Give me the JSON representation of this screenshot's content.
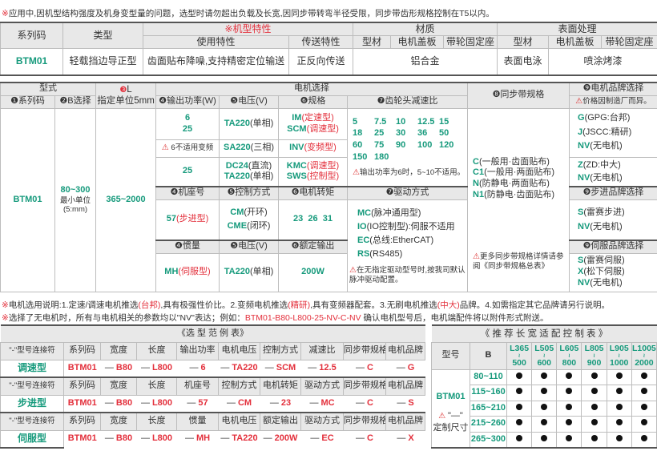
{
  "colors": {
    "accent_green": "#169a7c",
    "accent_red": "#e3303c",
    "header_gray": "#e8e8e8"
  },
  "top_note": {
    "mark": "※",
    "text": "应用中,因机型结构强度及机身变型量的问题，选型时请勿超出负载及长宽,因同步带转弯半径受限，同步带齿形规格控制在T5以内。"
  },
  "spec_table": {
    "h_series": "系列码",
    "h_type": "类型",
    "h_features": "※机型特性",
    "h_material": "材质",
    "h_surface": "表面处理",
    "h_use": "使用特性",
    "h_transfer": "传送特性",
    "h_profile": "型材",
    "h_cover": "电机盖板",
    "h_seat": "带轮固定座",
    "h_profile2": "型材",
    "h_cover2": "电机盖板",
    "h_seat2": "带轮固定座",
    "series": "BTM01",
    "type": "轻载挡边导正型",
    "use": "齿面贴布降噪,支持精密定位输送",
    "transfer": "正反向传送",
    "material": "铝合金",
    "surface_profile": "表面电泳",
    "surface_other": "喷涂烤漆"
  },
  "sel": {
    "h_model": "型式",
    "h_L_num": "❸",
    "h_L": "L",
    "h_L_sub": "指定单位5mm",
    "h_motor": "电机选择",
    "h_belt": "❽同步带规格",
    "h_brand": "❾电机品牌选择",
    "h_brand_note": "价格因制造厂而异。",
    "h_series": "❶系列码",
    "h_B": "❷B选择",
    "h_power": "❹输出功率(W)",
    "h_volt": "❺电压(V)",
    "h_spec": "❻规格",
    "h_gear": "❼齿轮头减速比",
    "series": "BTM01",
    "B": "80~300",
    "B_sub1": "最小单位",
    "B_sub2": "(5:mm)",
    "L": "365~2000",
    "p1a": "6",
    "p1b": "25",
    "v1": "TA220",
    "v1s": "(单相)",
    "s1a": "IM",
    "s1as": "(定速型)",
    "s1b": "SCM",
    "s1bs": "(调速型)",
    "p2": "6不适用变频",
    "v2": "SA220",
    "v2s": "(三相)",
    "s2": "INV",
    "s2s": "(变频型)",
    "p3": "25",
    "v3a": "DC24",
    "v3as": "(直流)",
    "v3b": "TA220",
    "v3bs": "(单相)",
    "s3a": "KMC",
    "s3as": "(调速型)",
    "s3b": "SWS",
    "s3bs": "(控制型)",
    "gear_ratios": [
      "5",
      "7.5",
      "10",
      "12.5",
      "15",
      "18",
      "25",
      "30",
      "36",
      "50",
      "60",
      "75",
      "90",
      "100",
      "120",
      "150",
      "180"
    ],
    "gear_note": "输出功率为6时，5~10不适用。",
    "belt": [
      {
        "c": "C",
        "d": "(一般用·齿面贴布)"
      },
      {
        "c": "C1",
        "d": "(一般用·两面贴布)"
      },
      {
        "c": "N",
        "d": "(防静电·两面贴布)"
      },
      {
        "c": "N1",
        "d": "(防静电·齿面贴布)"
      }
    ],
    "belt_note": "更多同步带规格详情请参阅《同步带规格总表》",
    "brand1": [
      {
        "c": "G",
        "d": "(GPG:台邦)"
      },
      {
        "c": "J",
        "d": "(JSCC:精研)"
      },
      {
        "c": "NV",
        "d": "(无电机)"
      }
    ],
    "brand2": [
      {
        "c": "Z",
        "d": "(ZD:中大)"
      },
      {
        "c": "NV",
        "d": "(无电机)"
      }
    ],
    "h_frame": "❹机座号",
    "h_ctrl": "❺控制方式",
    "h_torque": "❻电机转矩",
    "h_drive": "❼驱动方式",
    "h_step_brand": "❾步进品牌选择",
    "frame": "57",
    "frame_s": "(步进型)",
    "ctrl1": "CM",
    "ctrl1s": "(开环)",
    "ctrl2": "CME",
    "ctrl2s": "(闭环)",
    "torque": "23  26  31",
    "drive": [
      {
        "c": "MC",
        "d": "(脉冲通用型)"
      },
      {
        "c": "IO",
        "d": "(IO控制型):伺服不适用"
      },
      {
        "c": "EC",
        "d": "(总线:EtherCAT)"
      },
      {
        "c": "RS",
        "d": "(RS485)"
      }
    ],
    "drive_note": "在无指定驱动型号时,按我司默认脉冲驱动配置。",
    "step_brand": [
      {
        "c": "S",
        "d": "(雷赛步进)"
      },
      {
        "c": "NV",
        "d": "(无电机)"
      }
    ],
    "h_inertia": "❹惯量",
    "h_volt2": "❺电压(V)",
    "h_rated": "❻额定输出",
    "h_servo_brand": "❾伺服品牌选择",
    "inertia": "MH",
    "inertia_s": "(伺服型)",
    "volt2": "TA220",
    "volt2s": "(单相)",
    "rated": "200W",
    "servo_brand": [
      {
        "c": "S",
        "d": "(雷赛伺服)"
      },
      {
        "c": "X",
        "d": "(松下伺服)"
      },
      {
        "c": "NV",
        "d": "(无电机)"
      }
    ]
  },
  "notes": {
    "n1a": "※",
    "n1b": "电机选用说明:1.定速/调速电机推选",
    "n1c": "(台邦)",
    "n1d": ",具有极强性价比。2.变频电机推选",
    "n1e": "(精研)",
    "n1f": ",具有变频器配套。3.无刷电机推选",
    "n1g": "(中大)",
    "n1h": "品牌。4.如需指定其它品牌请另行说明。",
    "n2a": "※",
    "n2b": "选择了无电机时，所有与电机相关的参数均以\"NV\"表达；例如：",
    "n2c": "BTM01-B80-L800-25-NV-C-NV",
    "n2d": "  确认电机型号后，电机端配件将以附件形式附送。"
  },
  "example": {
    "title": "《选 型 范 例 表》",
    "connector": "—",
    "rows": [
      {
        "label": "调速型",
        "heads": [
          "\"-\"型号连接符",
          "系列码",
          "宽度",
          "长度",
          "输出功率",
          "电机电压",
          "控制方式",
          "减速比",
          "同步带规格",
          "电机品牌"
        ],
        "vals": [
          "BTM01",
          "B80",
          "L800",
          "6",
          "TA220",
          "SCM",
          "12.5",
          "C",
          "G"
        ]
      },
      {
        "label": "步进型",
        "heads": [
          "\"-\"型号连接符",
          "系列码",
          "宽度",
          "长度",
          "机座号",
          "控制方式",
          "电机转矩",
          "驱动方式",
          "同步带规格",
          "电机品牌"
        ],
        "vals": [
          "BTM01",
          "B80",
          "L800",
          "57",
          "CM",
          "23",
          "MC",
          "C",
          "S"
        ]
      },
      {
        "label": "伺服型",
        "heads": [
          "\"-\"型号连接符",
          "系列码",
          "宽度",
          "长度",
          "惯量",
          "电机电压",
          "额定输出",
          "驱动方式",
          "同步带规格",
          "电机品牌"
        ],
        "vals": [
          "BTM01",
          "B80",
          "L800",
          "MH",
          "TA220",
          "200W",
          "EC",
          "C",
          "X"
        ]
      }
    ]
  },
  "recommend": {
    "title": "《 推 荐 长 宽 适 配 控 制 表 》",
    "h_model": "型号",
    "h_B": "B",
    "lengths": [
      [
        "L365",
        "500"
      ],
      [
        "L505",
        "600"
      ],
      [
        "L605",
        "800"
      ],
      [
        "L805",
        "900"
      ],
      [
        "L905",
        "1000"
      ],
      [
        "L1005",
        "2000"
      ]
    ],
    "tilde": "≀",
    "model": "BTM01",
    "custom_mark": "\"—\"",
    "custom": "定制尺寸",
    "widths": [
      "80~110",
      "115~160",
      "165~210",
      "215~260",
      "265~300"
    ],
    "available": true
  }
}
